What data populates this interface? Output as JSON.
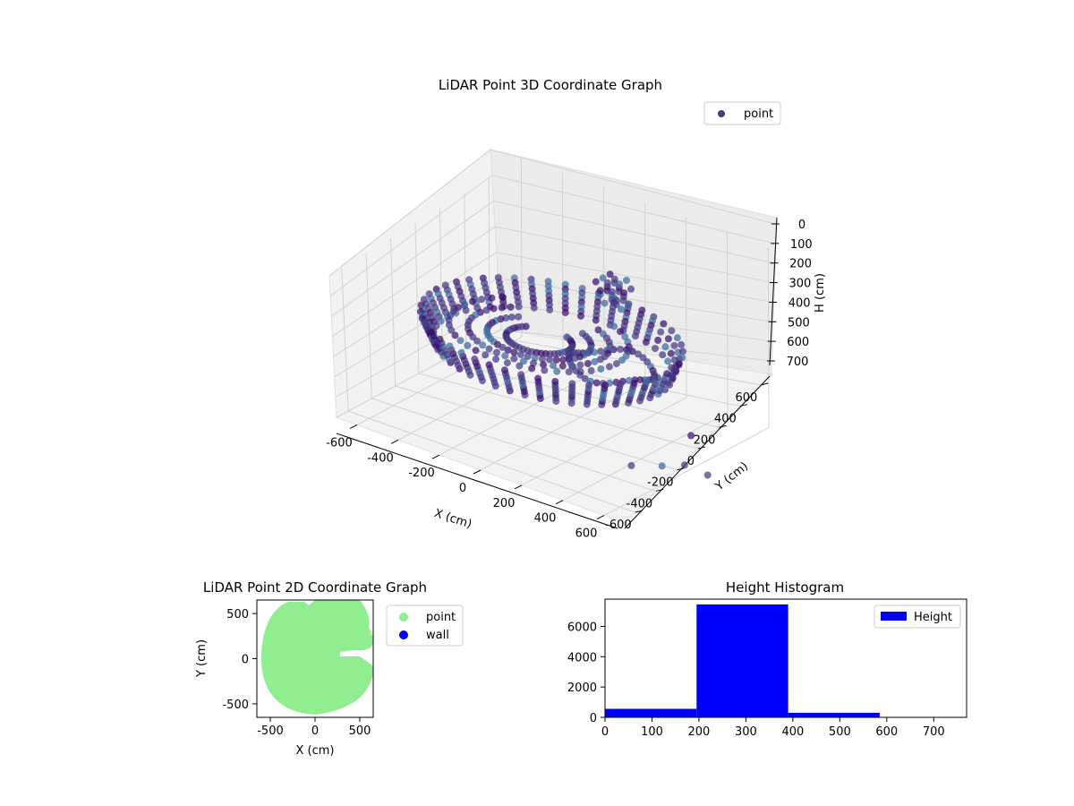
{
  "chart_data": [
    {
      "type": "scatter3d",
      "title": "LiDAR Point 3D Coordinate Graph",
      "xlabel": "X (cm)",
      "ylabel": "Y (cm)",
      "zlabel": "H (cm)",
      "xlim": [
        -700,
        700
      ],
      "ylim": [
        -700,
        700
      ],
      "zlim": [
        0,
        700
      ],
      "z_inverted": true,
      "xticks": [
        "-600",
        "-400",
        "-200",
        "0",
        "200",
        "400",
        "600"
      ],
      "yticks": [
        "-600",
        "-400",
        "-200",
        "0",
        "200",
        "400",
        "600"
      ],
      "zticks": [
        "0",
        "100",
        "200",
        "300",
        "400",
        "500",
        "600",
        "700"
      ],
      "legend": [
        "point"
      ],
      "legend_position": "top-right",
      "grid": true,
      "colors": {
        "point": "#443983",
        "dark": "#3b0f6f",
        "light": "#3e6a9e"
      }
    },
    {
      "type": "scatter",
      "title": "LiDAR Point 2D Coordinate Graph",
      "xlabel": "X (cm)",
      "ylabel": "Y (cm)",
      "xlim": [
        -650,
        650
      ],
      "ylim": [
        -650,
        650
      ],
      "xticks": [
        "-500",
        "0",
        "500"
      ],
      "yticks": [
        "-500",
        "0",
        "500"
      ],
      "legend": [
        "point",
        "wall"
      ],
      "legend_position": "outside-right",
      "colors": {
        "point": "#90ee90",
        "wall": "#0000ff"
      }
    },
    {
      "type": "histogram",
      "title": "Height Histogram",
      "bins": [
        {
          "start": 0,
          "end": 195,
          "count": 560
        },
        {
          "start": 195,
          "end": 390,
          "count": 7450
        },
        {
          "start": 390,
          "end": 585,
          "count": 300
        },
        {
          "start": 585,
          "end": 780,
          "count": 0
        }
      ],
      "xlim": [
        0,
        770
      ],
      "ylim": [
        0,
        7800
      ],
      "xticks": [
        "0",
        "100",
        "200",
        "300",
        "400",
        "500",
        "600",
        "700"
      ],
      "yticks": [
        "0",
        "2000",
        "4000",
        "6000"
      ],
      "legend": [
        "Height"
      ],
      "legend_position": "top-right",
      "colors": {
        "bar": "#0000ff"
      }
    }
  ]
}
